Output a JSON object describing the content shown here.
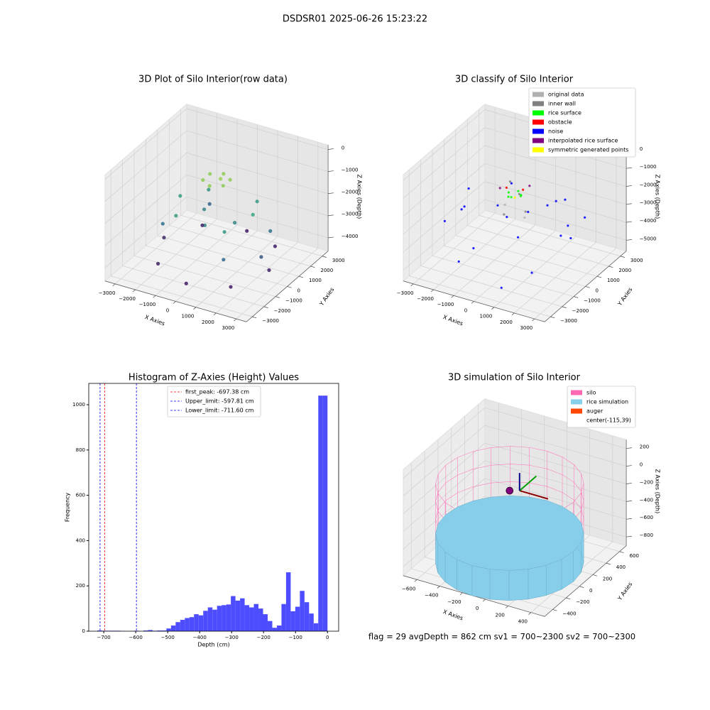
{
  "title": "DSDSR01 2025-06-26 15:23:22",
  "footer": "flag = 29  avgDepth = 862 cm  sv1 = 700~2300  sv2 = 700~2300",
  "chart_data": [
    {
      "type": "scatter3d",
      "title": "3D Plot of Silo Interior(row data)",
      "xlabel": "X Axies",
      "ylabel": "Y Axies",
      "zlabel": "Z Axies (Depth)",
      "xlim": [
        -3500,
        3500
      ],
      "ylim": [
        -3500,
        3500
      ],
      "zlim": [
        -4600,
        200
      ],
      "xticks": [
        {
          "value": -3000,
          "label": "−3000"
        },
        {
          "value": -2000,
          "label": "−2000"
        },
        {
          "value": -1000,
          "label": "−1000"
        },
        0,
        1000,
        2000,
        3000
      ],
      "yticks": [
        {
          "value": -3000,
          "label": "−3000"
        },
        {
          "value": -2000,
          "label": "−2000"
        },
        {
          "value": -1000,
          "label": "−1000"
        },
        0,
        1000,
        2000,
        3000
      ],
      "zticks": [
        0,
        {
          "value": -1000,
          "label": "−1000"
        },
        {
          "value": -2000,
          "label": "−2000"
        },
        {
          "value": -3000,
          "label": "−3000"
        },
        {
          "value": -4000,
          "label": "−4000"
        }
      ],
      "colormap": [
        "#440154",
        "#31688e",
        "#35b779",
        "#fde725"
      ],
      "series": [
        {
          "x": [
            0,
            500,
            500,
            0,
            -500,
            -500,
            200,
            1800,
            1200,
            -1200,
            -1800,
            -1200,
            1200,
            900,
            -900,
            0,
            2200,
            -2200,
            1500,
            -1500,
            2500,
            2600,
            1800,
            0,
            -1800,
            -2600,
            -1800,
            0,
            1800
          ],
          "y": [
            600,
            300,
            -300,
            -600,
            -300,
            300,
            0,
            0,
            1400,
            1400,
            0,
            -1400,
            -1400,
            0,
            500,
            -1000,
            800,
            -800,
            -2000,
            2000,
            -500,
            0,
            -1900,
            -2600,
            -1900,
            0,
            1900,
            2600,
            1900
          ],
          "z": [
            -700,
            -700,
            -700,
            -700,
            -700,
            -700,
            -600,
            -1800,
            -2000,
            -2100,
            -1900,
            -2000,
            -2100,
            -2400,
            -2500,
            -2300,
            -2800,
            -2900,
            -3000,
            -3100,
            -3300,
            -4100,
            -4200,
            -4200,
            -4100,
            -4000,
            -4100,
            -4200,
            -4100
          ]
        }
      ]
    },
    {
      "type": "scatter3d",
      "title": "3D classify of Silo Interior",
      "xlabel": "X Axies",
      "ylabel": "Y Axies",
      "zlabel": "Z Axies (Depth)",
      "xlim": [
        -3500,
        3500
      ],
      "ylim": [
        -3500,
        3500
      ],
      "zlim": [
        -5600,
        300
      ],
      "xticks": [
        {
          "value": -3000,
          "label": "−3000"
        },
        {
          "value": -2000,
          "label": "−2000"
        },
        {
          "value": -1000,
          "label": "−1000"
        },
        0,
        1000,
        2000,
        3000
      ],
      "yticks": [
        {
          "value": -3000,
          "label": "−3000"
        },
        {
          "value": -2000,
          "label": "−2000"
        },
        {
          "value": -1000,
          "label": "−1000"
        },
        0,
        1000,
        2000,
        3000
      ],
      "zticks": [
        0,
        {
          "value": -1000,
          "label": "−1000"
        },
        {
          "value": -2000,
          "label": "−2000"
        },
        {
          "value": -3000,
          "label": "−3000"
        },
        {
          "value": -4000,
          "label": "−4000"
        },
        {
          "value": -5000,
          "label": "−5000"
        }
      ],
      "legend": "upper right",
      "series": [
        {
          "name": "original data",
          "color": "#b0b0b0",
          "x": [
            -600,
            600,
            0
          ],
          "y": [
            200,
            -200,
            500
          ],
          "z": [
            -2500,
            -2600,
            -2000
          ]
        },
        {
          "name": "inner wall",
          "color": "#808080",
          "x": [
            -400,
            400,
            -300,
            300
          ],
          "y": [
            300,
            -300,
            -400,
            400
          ],
          "z": [
            -1200,
            -1300,
            -2600,
            -2700
          ]
        },
        {
          "name": "rice surface",
          "color": "#00ff00",
          "x": [
            300,
            0,
            -300,
            0,
            200,
            -200
          ],
          "y": [
            0,
            300,
            0,
            -300,
            200,
            -200
          ],
          "z": [
            -1600,
            -1600,
            -1600,
            -1600,
            -1700,
            -1700
          ]
        },
        {
          "name": "obstacle",
          "color": "#ff0000",
          "x": [
            350,
            -350
          ],
          "y": [
            100,
            -100
          ],
          "z": [
            -1300,
            -1300
          ]
        },
        {
          "name": "noise",
          "color": "#0000ff",
          "x": [
            1800,
            -1800,
            1200,
            -1200,
            2400,
            -2400,
            600,
            -600,
            2800,
            -2800,
            1500,
            -1500,
            0,
            2000,
            -2000,
            900,
            -900,
            2600,
            -2600,
            300
          ],
          "y": [
            1200,
            -1200,
            -1800,
            1800,
            400,
            -400,
            2500,
            -2500,
            -900,
            900,
            2200,
            -2200,
            2800,
            -2000,
            2000,
            -2700,
            2700,
            1500,
            -1500,
            -1200
          ],
          "z": [
            -2000,
            -2200,
            -2600,
            -2400,
            -2800,
            -3000,
            -3200,
            -3400,
            -2500,
            -2700,
            -4800,
            -4600,
            -3800,
            -4200,
            -4000,
            -5000,
            -4400,
            -2900,
            -3100,
            -2100
          ]
        },
        {
          "name": "interpolated rice surface",
          "color": "#800080",
          "x": [
            -500,
            500
          ],
          "y": [
            -400,
            400
          ],
          "z": [
            -1200,
            -1200
          ]
        },
        {
          "name": "symmetric generated points",
          "color": "#ffff00",
          "x": [
            0
          ],
          "y": [
            0
          ],
          "z": [
            -1800
          ]
        }
      ]
    },
    {
      "type": "histogram",
      "title": "Histogram of Z-Axies (Height) Values",
      "xlabel": "Depth (cm)",
      "ylabel": "Frequency",
      "xlim": [
        -747,
        35
      ],
      "ylim": [
        0,
        1094
      ],
      "xticks": [
        {
          "value": -700,
          "label": "−700"
        },
        {
          "value": -600,
          "label": "−600"
        },
        {
          "value": -500,
          "label": "−500"
        },
        {
          "value": -400,
          "label": "−400"
        },
        {
          "value": -300,
          "label": "−300"
        },
        {
          "value": -200,
          "label": "−200"
        },
        {
          "value": -100,
          "label": "−100"
        },
        0
      ],
      "yticks": [
        0,
        200,
        400,
        600,
        800,
        1000
      ],
      "color": "#4d4dff",
      "bins": [
        -720,
        -705.6,
        -691.2,
        -676.8,
        -662.4,
        -648,
        -633.6,
        -619.2,
        -604.8,
        -590.4,
        -576,
        -561.6,
        -547.2,
        -532.8,
        -518.4,
        -504,
        -489.6,
        -475.2,
        -460.8,
        -446.4,
        -432,
        -417.6,
        -403.2,
        -388.8,
        -374.4,
        -360,
        -345.6,
        -331.2,
        -316.8,
        -302.4,
        -288,
        -273.6,
        -259.2,
        -244.8,
        -230.4,
        -216,
        -201.6,
        -187.2,
        -172.8,
        -158.4,
        -144,
        -129.6,
        -115.2,
        -100.8,
        -86.4,
        -72,
        -57.6,
        -43.2,
        -28.8,
        -14.4,
        0
      ],
      "counts": [
        3,
        2,
        2,
        2,
        2,
        1,
        0,
        1,
        2,
        0,
        3,
        5,
        2,
        3,
        3,
        12,
        25,
        40,
        50,
        58,
        62,
        75,
        70,
        90,
        105,
        95,
        112,
        115,
        118,
        155,
        135,
        145,
        115,
        105,
        120,
        100,
        75,
        45,
        15,
        25,
        120,
        260,
        88,
        108,
        178,
        128,
        78,
        35,
        1040,
        1040
      ],
      "lines": [
        {
          "name": "first_peak: -697.38 cm",
          "value": -697.38,
          "color": "#ff0000"
        },
        {
          "name": "Upper_limit: -597.81 cm",
          "value": -597.81,
          "color": "#0000ff"
        },
        {
          "name": "Lower_limit: -711.60 cm",
          "value": -711.6,
          "color": "#0000ff"
        }
      ],
      "legend": "upper center"
    },
    {
      "type": "silo3d",
      "title": "3D simulation of Silo Interior",
      "xlabel": "X Axies",
      "ylabel": "Y Axies",
      "zlabel": "Z Axies (Depth)",
      "xlim": [
        -720,
        520
      ],
      "ylim": [
        -520,
        700
      ],
      "zlim": [
        -900,
        300
      ],
      "xticks": [
        {
          "value": -600,
          "label": "−600"
        },
        {
          "value": -400,
          "label": "−400"
        },
        {
          "value": -200,
          "label": "−200"
        },
        0,
        200,
        400
      ],
      "yticks": [
        {
          "value": -400,
          "label": "−400"
        },
        {
          "value": -200,
          "label": "−200"
        },
        0,
        200,
        400,
        600
      ],
      "zticks": [
        200,
        0,
        {
          "value": -200,
          "label": "−200"
        },
        {
          "value": -400,
          "label": "−400"
        },
        {
          "value": -600,
          "label": "−600"
        },
        {
          "value": -800,
          "label": "−800"
        }
      ],
      "legend": "upper right",
      "silo": {
        "name": "silo",
        "color": "#ff69b4",
        "radius": 560,
        "top": 0,
        "bottom": -700
      },
      "rice": {
        "name": "rice simulation",
        "color": "#87ceeb",
        "level": -560,
        "bottom": -900
      },
      "auger": {
        "name": "auger",
        "color": "#ff4500"
      },
      "center": {
        "name": "center(-115,39)",
        "x": -115,
        "y": 39,
        "z": -80,
        "color": "#800080"
      },
      "quiver_colors": [
        "#8b0000",
        "#00a000",
        "#00008b"
      ]
    }
  ]
}
